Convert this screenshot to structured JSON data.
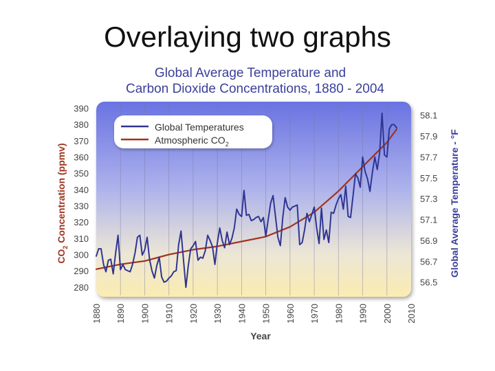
{
  "slide": {
    "title": "Overlaying two graphs"
  },
  "chart_data": {
    "type": "line",
    "title_line1": "Global Average Temperature and",
    "title_line2": "Carbon Dioxide Concentrations, 1880 - 2004",
    "xlabel": "Year",
    "ylabel_left_prefix": "CO",
    "ylabel_left_sub": "2",
    "ylabel_left_suffix": " Concentration (ppmv)",
    "ylabel_right": "Global Average Temperature - °F",
    "xlim": [
      1880,
      2010
    ],
    "ylim_left": [
      274,
      394
    ],
    "ylim_right": [
      56.36,
      58.23
    ],
    "x_ticks": [
      1880,
      1890,
      1900,
      1910,
      1920,
      1930,
      1940,
      1950,
      1960,
      1970,
      1980,
      1990,
      2000,
      2010
    ],
    "y_ticks_left": [
      280,
      290,
      300,
      310,
      320,
      330,
      340,
      350,
      360,
      370,
      380,
      390
    ],
    "y_ticks_right": [
      56.5,
      56.7,
      56.9,
      57.1,
      57.3,
      57.5,
      57.7,
      57.9,
      58.1
    ],
    "legend": [
      {
        "label": "Global Temperatures",
        "sub": "",
        "color": "#2f3592"
      },
      {
        "label": "Atmospheric CO",
        "sub": "2",
        "color": "#a0341e"
      }
    ],
    "series": [
      {
        "name": "Global Temperatures",
        "axis": "right",
        "color": "#2f3592",
        "x": [
          1880,
          1881,
          1882,
          1883,
          1884,
          1885,
          1886,
          1887,
          1888,
          1889,
          1890,
          1891,
          1892,
          1893,
          1894,
          1895,
          1896,
          1897,
          1898,
          1899,
          1900,
          1901,
          1902,
          1903,
          1904,
          1905,
          1906,
          1907,
          1908,
          1909,
          1910,
          1911,
          1912,
          1913,
          1914,
          1915,
          1916,
          1917,
          1918,
          1919,
          1920,
          1921,
          1922,
          1923,
          1924,
          1925,
          1926,
          1927,
          1928,
          1929,
          1930,
          1931,
          1932,
          1933,
          1934,
          1935,
          1936,
          1937,
          1938,
          1939,
          1940,
          1941,
          1942,
          1943,
          1944,
          1945,
          1946,
          1947,
          1948,
          1949,
          1950,
          1951,
          1952,
          1953,
          1954,
          1955,
          1956,
          1957,
          1958,
          1959,
          1960,
          1961,
          1962,
          1963,
          1964,
          1965,
          1966,
          1967,
          1968,
          1969,
          1970,
          1971,
          1972,
          1973,
          1974,
          1975,
          1976,
          1977,
          1978,
          1979,
          1980,
          1981,
          1982,
          1983,
          1984,
          1985,
          1986,
          1987,
          1988,
          1989,
          1990,
          1991,
          1992,
          1993,
          1994,
          1995,
          1996,
          1997,
          1998,
          1999,
          2000,
          2001,
          2002,
          2003,
          2004
        ],
        "values": [
          56.75,
          56.82,
          56.82,
          56.67,
          56.6,
          56.71,
          56.72,
          56.58,
          56.78,
          56.95,
          56.62,
          56.67,
          56.62,
          56.61,
          56.6,
          56.67,
          56.78,
          56.93,
          56.95,
          56.76,
          56.81,
          56.93,
          56.72,
          56.61,
          56.54,
          56.66,
          56.74,
          56.55,
          56.5,
          56.51,
          56.54,
          56.56,
          56.6,
          56.61,
          56.86,
          56.99,
          56.72,
          56.45,
          56.66,
          56.82,
          56.85,
          56.89,
          56.71,
          56.74,
          56.73,
          56.8,
          56.95,
          56.9,
          56.84,
          56.67,
          56.88,
          57.02,
          56.9,
          56.83,
          56.98,
          56.86,
          56.92,
          57.02,
          57.2,
          57.15,
          57.13,
          57.38,
          57.14,
          57.15,
          57.09,
          57.1,
          57.12,
          57.13,
          57.08,
          57.12,
          56.94,
          57.1,
          57.26,
          57.33,
          57.13,
          56.93,
          56.85,
          57.12,
          57.31,
          57.22,
          57.19,
          57.22,
          57.23,
          57.24,
          56.86,
          56.88,
          57.0,
          57.16,
          57.08,
          57.15,
          57.22,
          57.02,
          56.87,
          57.21,
          56.91,
          57.0,
          56.88,
          57.17,
          57.16,
          57.24,
          57.3,
          57.34,
          57.2,
          57.42,
          57.13,
          57.12,
          57.32,
          57.54,
          57.5,
          57.41,
          57.7,
          57.56,
          57.49,
          57.37,
          57.55,
          57.7,
          57.58,
          57.74,
          58.12,
          57.72,
          57.7,
          57.97,
          58.01,
          58.01,
          57.98
        ]
      },
      {
        "name": "Atmospheric CO2",
        "axis": "left",
        "color": "#a0341e",
        "x": [
          1880,
          1890,
          1900,
          1910,
          1920,
          1930,
          1940,
          1950,
          1960,
          1970,
          1980,
          1990,
          2000,
          2004
        ],
        "values": [
          291,
          294,
          296,
          300,
          303,
          305,
          308,
          311,
          317,
          326,
          339,
          354,
          369,
          377
        ]
      }
    ]
  }
}
